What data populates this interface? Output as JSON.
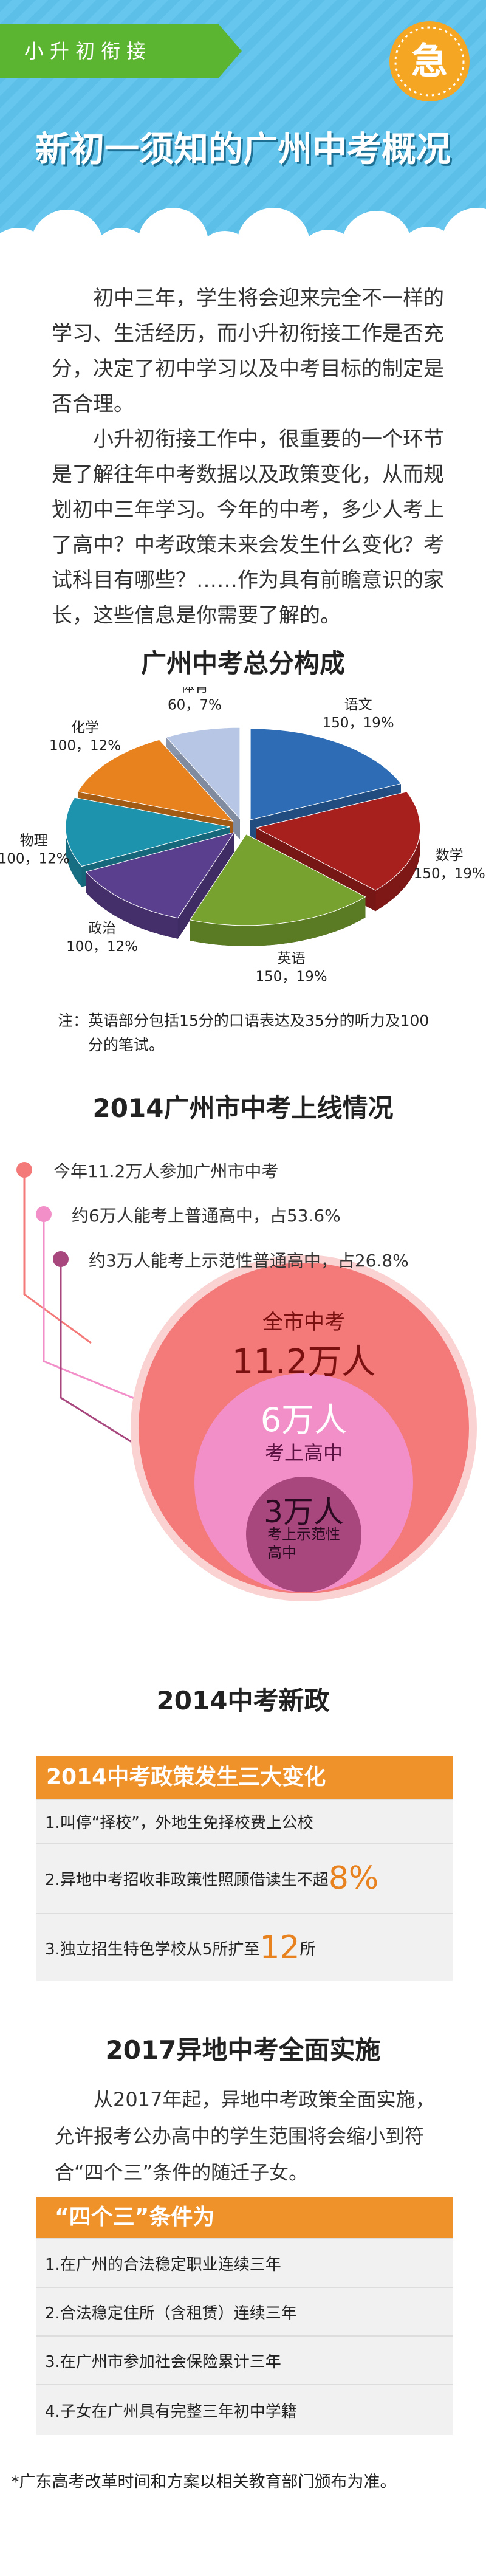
{
  "header": {
    "tag": "小升初衔接",
    "badge": "急",
    "title": "新初一须知的广州中考概况"
  },
  "intro": [
    "初中三年，学生将会迎来完全不一样的学习、生活经历，而小升初衔接工作是否充分，决定了初中学习以及中考目标的制定是否合理。",
    "小升初衔接工作中，很重要的一个环节是了解往年中考数据以及政策变化，从而规划初中三年学习。今年的中考，多少人考上了高中？中考政策未来会发生什么变化？考试科目有哪些？……作为具有前瞻意识的家长，这些信息是你需要了解的。"
  ],
  "chart_data": {
    "type": "pie",
    "title": "广州中考总分构成",
    "categories": [
      "语文",
      "数学",
      "英语",
      "政治",
      "物理",
      "化学",
      "体育"
    ],
    "values": [
      150,
      150,
      150,
      100,
      100,
      100,
      60
    ],
    "value_labels": [
      "150，19%",
      "150，19%",
      "150，19%",
      "100，12%",
      "100，12%",
      "100，12%",
      "60，7%"
    ],
    "colors": [
      "#2e6db5",
      "#a8201e",
      "#78a22f",
      "#5b3f8f",
      "#1e93ad",
      "#e8821e",
      "#b7c6e4"
    ],
    "note": "注：英语部分包括15分的口语表达及35分的听力及100分的笔试。"
  },
  "enrollment": {
    "title": "2014广州市中考上线情况",
    "items": [
      "今年11.2万人参加广州市中考",
      "约6万人能考上普通高中，占53.6%",
      "约3万人能考上示范性普通高中，占26.8%"
    ],
    "circles": [
      {
        "label": "全市中考",
        "value": "11.2万人"
      },
      {
        "value": "6万人",
        "label": "考上高中"
      },
      {
        "value": "3万人",
        "label": "考上示范性高中"
      }
    ]
  },
  "policy": {
    "title": "2014中考新政",
    "heading": "2014中考政策发生三大变化",
    "rows": [
      {
        "text": "1.叫停“择校”，外地生免择校费上公校"
      },
      {
        "text": "2.异地中考招收非政策性照顾借读生不超",
        "highlight": "8%"
      },
      {
        "text": "3.独立招生特色学校从5所扩至",
        "highlight": "12",
        "suffix": "所"
      }
    ]
  },
  "remote": {
    "title": "2017异地中考全面实施",
    "paragraph": "从2017年起，异地中考政策全面实施，允许报考公办高中的学生范围将会缩小到符合“四个三”条件的随迁子女。",
    "heading": "“四个三”条件为",
    "rows": [
      "1.在广州的合法稳定职业连续三年",
      "2.合法稳定住所（含租赁）连续三年",
      "3.在广州市参加社会保险累计三年",
      "4.子女在广州具有完整三年初中学籍"
    ]
  },
  "footer": "*广东高考改革时间和方案以相关教育部门颁布为准。"
}
